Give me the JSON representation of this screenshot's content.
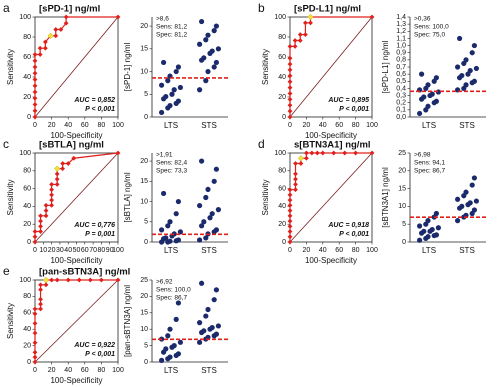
{
  "chart_data": [
    {
      "type": "roc",
      "panel": "a",
      "title": "[sPD-1] ng/ml",
      "xlabel": "100-Specificity",
      "ylabel": "Sensitivity",
      "annotations": [
        "AUC = 0,852",
        "P < 0,001"
      ],
      "xlim": [
        0,
        100
      ],
      "ylim": [
        0,
        100
      ],
      "xticks": [
        0,
        20,
        40,
        60,
        80,
        100
      ],
      "yticks": [
        0,
        20,
        40,
        60,
        80,
        100
      ],
      "series": [
        {
          "color": "#e0201c",
          "x": [
            0,
            0,
            0,
            0,
            0,
            0,
            0,
            0,
            0,
            0,
            0,
            6.2,
            6.2,
            12.5,
            12.5,
            18.8,
            25,
            25,
            31.2,
            37.5,
            37.5,
            100
          ],
          "values": [
            0,
            6.2,
            12.5,
            18.8,
            25,
            31.2,
            37.5,
            43.8,
            50,
            56.2,
            62.5,
            62.5,
            68.8,
            68.8,
            75,
            81.2,
            81.2,
            87.5,
            87.5,
            93.8,
            100,
            100
          ]
        },
        {
          "color": "#f2e23a",
          "x": [
            18.8
          ],
          "values": [
            81.2
          ]
        }
      ]
    },
    {
      "type": "dot",
      "ylabel": "[sPD-1] ng/ml",
      "categories": [
        "LTS",
        "STS"
      ],
      "ylim": [
        0,
        22
      ],
      "yticks": [
        0,
        5,
        10,
        15,
        20
      ],
      "cutoff": {
        "value": 8.6,
        "label": ">8,6"
      },
      "annotations": [
        "Sens: 81,2",
        "Spec: 81,2"
      ],
      "color": "#1b2a6b",
      "cutoff_color": "#e0201c",
      "values": [
        [
          1,
          2,
          2.5,
          3,
          3.5,
          4,
          4.5,
          5,
          6,
          6.5,
          7,
          8,
          9,
          10,
          11,
          12
        ],
        [
          6,
          8,
          10,
          11,
          12,
          12.5,
          13,
          14,
          14.5,
          15,
          16,
          17,
          18,
          19,
          20,
          21
        ]
      ]
    },
    {
      "type": "roc",
      "panel": "b",
      "title": "[sPD-L1] ng/ml",
      "xlabel": "100-Specificity",
      "ylabel": "Sensitivity",
      "annotations": [
        "AUC = 0,895",
        "P < 0,001"
      ],
      "xlim": [
        0,
        100
      ],
      "ylim": [
        0,
        100
      ],
      "xticks": [
        0,
        20,
        40,
        60,
        80,
        100
      ],
      "yticks": [
        0,
        20,
        40,
        60,
        80,
        100
      ],
      "series": [
        {
          "color": "#e0201c",
          "x": [
            0,
            0,
            0,
            0,
            0,
            0,
            0,
            0,
            0,
            0,
            0,
            0,
            6.2,
            6.2,
            12.5,
            12.5,
            18.8,
            18.8,
            25,
            25,
            100
          ],
          "values": [
            0,
            5.9,
            11.8,
            17.6,
            23.5,
            29.4,
            35.3,
            41.2,
            47.1,
            52.9,
            58.8,
            70.6,
            70.6,
            76.5,
            76.5,
            82.4,
            82.4,
            94.1,
            94.1,
            100,
            100
          ]
        },
        {
          "color": "#f2e23a",
          "x": [
            25
          ],
          "values": [
            100
          ]
        }
      ]
    },
    {
      "type": "dot",
      "ylabel": "[sPD-L1] ng/ml",
      "categories": [
        "LTS",
        "STS"
      ],
      "ylim": [
        0,
        1.4
      ],
      "yticks": [
        {
          "value": 0,
          "label": "0,0"
        },
        {
          "value": 0.1,
          "label": "0,1"
        },
        {
          "value": 0.2,
          "label": "0,2"
        },
        {
          "value": 0.3,
          "label": "0,3"
        },
        {
          "value": 0.4,
          "label": "0,4"
        },
        {
          "value": 0.5,
          "label": "0,5"
        },
        {
          "value": 0.6,
          "label": "0,6"
        },
        {
          "value": 0.7,
          "label": "0,7"
        },
        {
          "value": 0.8,
          "label": "0,8"
        },
        {
          "value": 0.9,
          "label": "0,9"
        },
        {
          "value": 1.0,
          "label": "1,0"
        },
        {
          "value": 1.1,
          "label": "1,1"
        },
        {
          "value": 1.2,
          "label": "1,2"
        },
        {
          "value": 1.3,
          "label": "1,3"
        },
        {
          "value": 1.4,
          "label": "1,4"
        }
      ],
      "cutoff": {
        "value": 0.36,
        "label": ">0,36"
      },
      "annotations": [
        "Sens: 100,0",
        "Spec: 75,0"
      ],
      "color": "#1b2a6b",
      "cutoff_color": "#e0201c",
      "values": [
        [
          0.05,
          0.1,
          0.15,
          0.2,
          0.22,
          0.25,
          0.28,
          0.3,
          0.32,
          0.35,
          0.38,
          0.4,
          0.45,
          0.5,
          0.55,
          0.6
        ],
        [
          0.38,
          0.4,
          0.45,
          0.48,
          0.5,
          0.55,
          0.58,
          0.6,
          0.65,
          0.68,
          0.7,
          0.75,
          0.8,
          0.9,
          1.0,
          1.1
        ]
      ]
    },
    {
      "type": "roc",
      "panel": "c",
      "title": "[sBTLA] ng/ml",
      "xlabel": "100-Specificity",
      "ylabel": "Sensitivity",
      "annotations": [
        "AUC = 0,776",
        "P = 0,001"
      ],
      "xlim": [
        0,
        100
      ],
      "ylim": [
        0,
        100
      ],
      "xticks": [
        0,
        10,
        20,
        30,
        40,
        50,
        60,
        70,
        80,
        90,
        100
      ],
      "yticks": [
        0,
        20,
        40,
        60,
        80,
        100
      ],
      "series": [
        {
          "color": "#e0201c",
          "x": [
            0,
            0,
            0,
            6.7,
            6.7,
            6.7,
            6.7,
            13.3,
            13.3,
            13.3,
            20,
            20,
            20,
            20,
            20,
            26.7,
            26.7,
            26.7,
            26.7,
            33.3,
            33.3,
            40,
            46.7,
            100
          ],
          "values": [
            0,
            5.9,
            11.8,
            11.8,
            17.6,
            23.5,
            29.4,
            29.4,
            35.3,
            41.2,
            41.2,
            47.1,
            52.9,
            58.8,
            64.7,
            64.7,
            70.6,
            76.5,
            82.4,
            82.4,
            88.2,
            88.2,
            94.1,
            100
          ]
        },
        {
          "color": "#f2e23a",
          "x": [
            26.7
          ],
          "values": [
            82.4
          ]
        }
      ]
    },
    {
      "type": "dot",
      "ylabel": "[sBTLA] ng/ml",
      "categories": [
        "LTS",
        "STS"
      ],
      "ylim": [
        0,
        22
      ],
      "yticks": [
        0,
        5,
        10,
        15,
        20
      ],
      "cutoff": {
        "value": 1.91,
        "label": ">1,91"
      },
      "annotations": [
        "Sens: 82,4",
        "Spec: 73,3"
      ],
      "color": "#1b2a6b",
      "cutoff_color": "#e0201c",
      "values": [
        [
          0,
          0,
          0.2,
          0.3,
          0.5,
          0.8,
          1,
          1.5,
          2,
          2.5,
          3,
          4,
          5,
          7,
          10,
          12
        ],
        [
          0.5,
          1,
          2,
          2.5,
          3,
          4,
          5,
          6,
          7,
          8,
          9,
          11,
          13,
          15,
          18,
          20
        ]
      ]
    },
    {
      "type": "roc",
      "panel": "d",
      "title": "s[BTN3A1] ng/ml",
      "xlabel": "100-Specificity",
      "ylabel": "Sensitivity",
      "annotations": [
        "AUC = 0,918",
        "P < 0,001"
      ],
      "xlim": [
        0,
        100
      ],
      "ylim": [
        0,
        100
      ],
      "xticks": [
        0,
        20,
        40,
        60,
        80,
        100
      ],
      "yticks": [
        0,
        20,
        40,
        60,
        80,
        100
      ],
      "series": [
        {
          "color": "#e0201c",
          "x": [
            0,
            0,
            0,
            0,
            0,
            0,
            0,
            0,
            0,
            0,
            0,
            6.7,
            6.7,
            6.7,
            6.7,
            6.7,
            13.3,
            13.3,
            20,
            20,
            26.7,
            33.3,
            40,
            53.3,
            66.7,
            80,
            100
          ],
          "values": [
            0,
            5.9,
            11.8,
            17.6,
            23.5,
            29.4,
            35.3,
            41.2,
            47.1,
            52.9,
            58.8,
            58.8,
            64.7,
            70.6,
            76.5,
            88.2,
            88.2,
            94.1,
            94.1,
            100,
            100,
            100,
            100,
            100,
            100,
            100,
            100
          ]
        },
        {
          "color": "#f2e23a",
          "x": [
            13.3
          ],
          "values": [
            94.1
          ]
        }
      ]
    },
    {
      "type": "dot",
      "ylabel": "[sBTN3A1] ng/ml",
      "categories": [
        "LTS",
        "STS"
      ],
      "ylim": [
        0,
        25
      ],
      "yticks": [
        0,
        5,
        10,
        15,
        20,
        25
      ],
      "cutoff": {
        "value": 6.98,
        "label": ">6,98"
      },
      "annotations": [
        "Sens: 94,1",
        "Spec: 86,7"
      ],
      "color": "#1b2a6b",
      "cutoff_color": "#e0201c",
      "values": [
        [
          0.5,
          1,
          1.5,
          1.8,
          2,
          2.5,
          3,
          3,
          3.5,
          4,
          4.5,
          5,
          6,
          7,
          8
        ],
        [
          6,
          7,
          7.5,
          8,
          9,
          9.5,
          10,
          10.5,
          11,
          11.5,
          12,
          13,
          14,
          16,
          18
        ]
      ]
    },
    {
      "type": "roc",
      "panel": "e",
      "title": "[pan-sBTN3A] ng/ml",
      "xlabel": "100-Specificity",
      "ylabel": "Sensitivity",
      "annotations": [
        "AUC = 0,922",
        "P < 0,001"
      ],
      "xlim": [
        0,
        100
      ],
      "ylim": [
        0,
        100
      ],
      "xticks": [
        0,
        20,
        40,
        60,
        80,
        100
      ],
      "yticks": [
        0,
        20,
        40,
        60,
        80,
        100
      ],
      "series": [
        {
          "color": "#e0201c",
          "x": [
            0,
            0,
            0,
            0,
            0,
            0,
            0,
            0,
            6.7,
            6.7,
            6.7,
            6.7,
            6.7,
            13.3,
            13.3,
            20,
            26.7,
            40,
            53.3,
            66.7,
            80,
            100
          ],
          "values": [
            0,
            5.9,
            11.8,
            23.5,
            35.3,
            47.1,
            58.8,
            64.7,
            64.7,
            70.6,
            76.5,
            88.2,
            94.1,
            94.1,
            100,
            100,
            100,
            100,
            100,
            100,
            100,
            100
          ]
        },
        {
          "color": "#f2e23a",
          "x": [
            13.3
          ],
          "values": [
            100
          ]
        }
      ]
    },
    {
      "type": "dot",
      "ylabel": "[pan-sBTN3A] ng/ml",
      "categories": [
        "LTS",
        "STS"
      ],
      "ylim": [
        0,
        25
      ],
      "yticks": [
        0,
        5,
        10,
        15,
        20,
        25
      ],
      "cutoff": {
        "value": 6.92,
        "label": ">6,92"
      },
      "annotations": [
        "Sens: 100,0",
        "Spec: 86,7"
      ],
      "color": "#1b2a6b",
      "cutoff_color": "#e0201c",
      "values": [
        [
          0.5,
          1,
          1.5,
          2,
          2.5,
          3,
          4,
          4.5,
          5,
          6,
          7,
          8,
          10,
          13,
          18
        ],
        [
          6,
          7,
          7.5,
          8,
          8.5,
          9,
          9.5,
          10,
          10.5,
          11,
          12,
          14,
          16,
          19,
          22,
          24
        ]
      ]
    }
  ]
}
